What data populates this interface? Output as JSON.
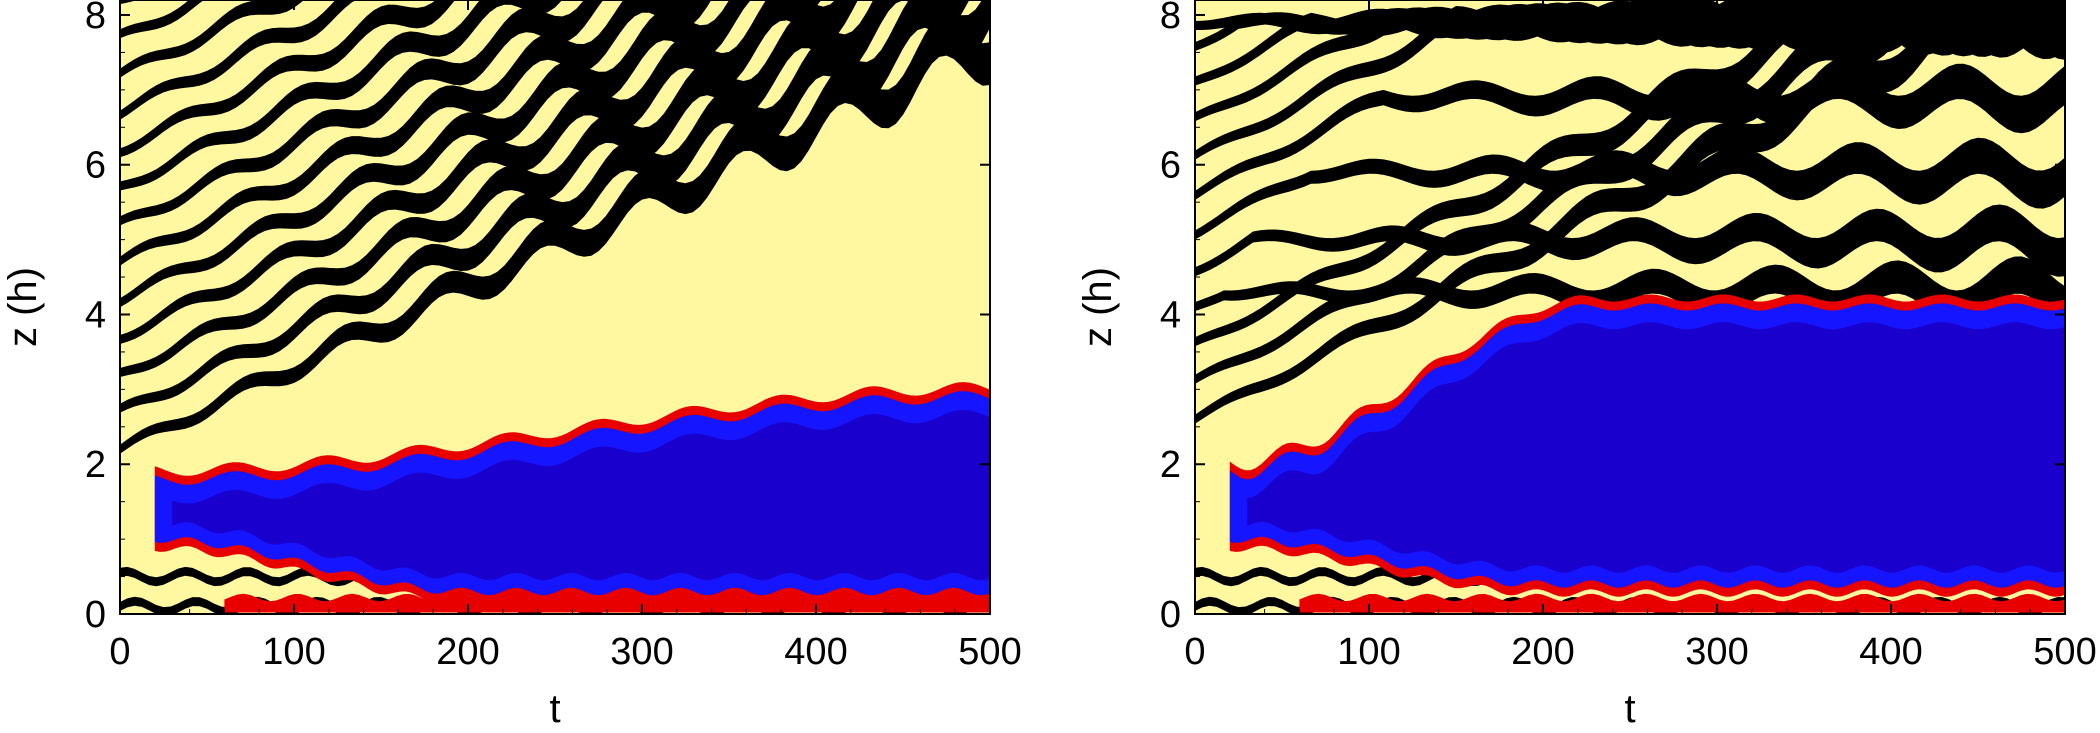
{
  "chart_data": [
    {
      "type": "heatmap",
      "title": "",
      "xlabel": "t",
      "ylabel": "z (h)",
      "xlim": [
        0,
        500
      ],
      "ylim": [
        0,
        8.2
      ],
      "xticks": [
        0,
        100,
        200,
        300,
        400,
        500
      ],
      "yticks": [
        0,
        2,
        4,
        6,
        8
      ],
      "colors": {
        "background": "#fff8a0",
        "layer": "#000000",
        "mixed_core": "#1a00cc",
        "mixed_light": "#1515ff",
        "edge_red": "#e80000"
      },
      "mixed_region": {
        "t_start": 20,
        "bottom_start": 1.0,
        "bottom_end": 0.3,
        "top_start": 1.8,
        "top_end": 2.9
      },
      "stripes_above_mixed_z0": [
        2.2,
        2.7,
        3.2,
        3.7,
        4.2,
        4.7,
        5.2,
        5.7,
        6.2,
        6.7,
        7.2,
        7.7,
        8.2
      ],
      "stripes_below_mixed_z0": [
        0.1,
        0.5
      ],
      "stripe_drift_slope": 0.011
    },
    {
      "type": "heatmap",
      "title": "",
      "xlabel": "t",
      "ylabel": "z (h)",
      "xlim": [
        0,
        500
      ],
      "ylim": [
        0,
        8.2
      ],
      "xticks": [
        0,
        100,
        200,
        300,
        400,
        500
      ],
      "yticks": [
        0,
        2,
        4,
        6,
        8
      ],
      "colors": {
        "background": "#fff8a0",
        "layer": "#000000",
        "mixed_core": "#1a00cc",
        "mixed_light": "#1515ff",
        "edge_red": "#e80000"
      },
      "mixed_region": {
        "t_start": 20,
        "bottom_start": 1.0,
        "bottom_end": 0.4,
        "top_start": 1.9,
        "top_end": 4.1,
        "top_saturate_t": 230
      },
      "stripes_above_mixed_z0": [
        2.6,
        3.1,
        3.6,
        4.1,
        4.6,
        5.1,
        5.6,
        6.1,
        6.6,
        7.1,
        7.6,
        8.1
      ],
      "stripes_below_mixed_z0": [
        0.1,
        0.5
      ],
      "flat_layer_levels": [
        4.3,
        5.0,
        5.9,
        6.9,
        7.9
      ]
    }
  ]
}
